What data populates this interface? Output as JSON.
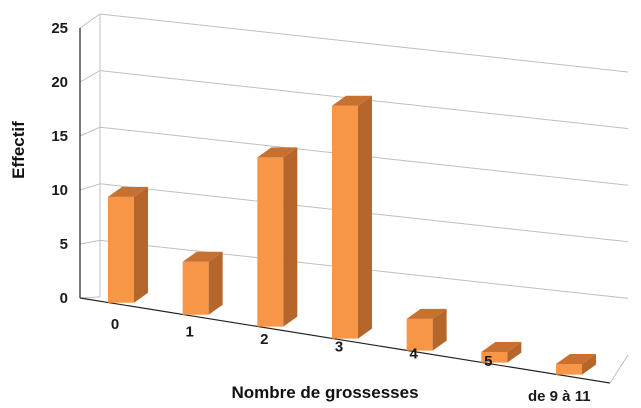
{
  "chart_data": {
    "type": "bar",
    "categories": [
      "0",
      "1",
      "2",
      "3",
      "4",
      "5",
      "de 9 à 11"
    ],
    "values": [
      10,
      5,
      16,
      22,
      3,
      1,
      1
    ],
    "xlabel": "Nombre de grossesses",
    "ylabel": "Effectif",
    "ylim": [
      0,
      25
    ],
    "yticks": [
      "0",
      "5",
      "10",
      "15",
      "20",
      "25"
    ],
    "grid": true,
    "three_d": true,
    "colors": {
      "bar_front": "#f79646",
      "bar_side": "#b5672b",
      "bar_top": "#c8702f",
      "grid": "#bfbfbf",
      "axis": "#222222"
    }
  }
}
